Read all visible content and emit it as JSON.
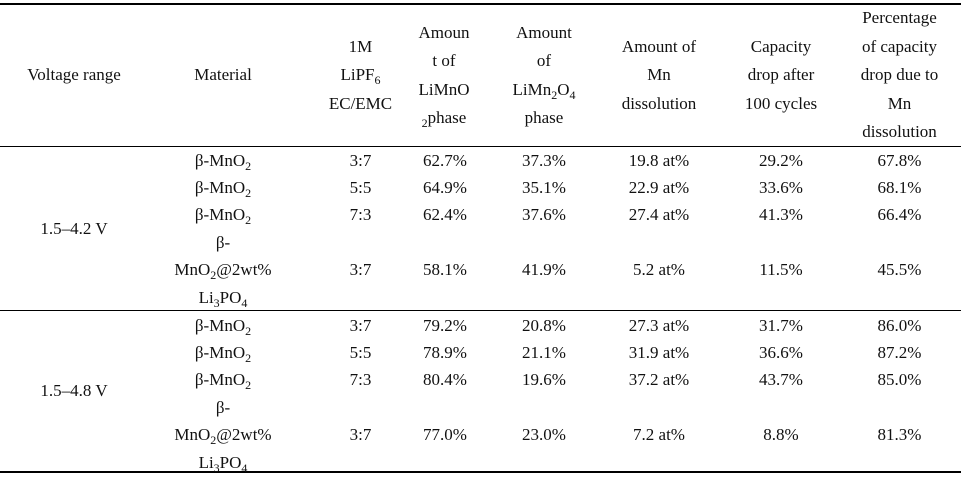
{
  "headers": {
    "voltage": [
      "Voltage range"
    ],
    "material": [
      "Material"
    ],
    "electrolyte": [
      "1M",
      "LiPF|6",
      "EC/EMC"
    ],
    "limno": [
      "Amoun",
      "t of",
      "LiMnO",
      "|2|phase"
    ],
    "limn2o4": [
      "Amount",
      "of",
      "LiMn|2|O|4",
      "phase"
    ],
    "mn_dissolution": [
      "Amount of",
      "Mn",
      "dissolution"
    ],
    "capacity_drop": [
      "Capacity",
      "drop after",
      "100 cycles"
    ],
    "pct_drop": [
      "Percentage",
      "of capacity",
      "drop due to",
      "Mn",
      "dissolution"
    ]
  },
  "groups": [
    {
      "voltage": "1.5–4.2 V",
      "rows": [
        {
          "material": [
            "β-MnO|2"
          ],
          "ratio": "3:7",
          "limno": "62.7%",
          "limn2o4": "37.3%",
          "mn": "19.8 at%",
          "cap": "29.2%",
          "pct": "67.8%"
        },
        {
          "material": [
            "β-MnO|2"
          ],
          "ratio": "5:5",
          "limno": "64.9%",
          "limn2o4": "35.1%",
          "mn": "22.9 at%",
          "cap": "33.6%",
          "pct": "68.1%"
        },
        {
          "material": [
            "β-MnO|2"
          ],
          "ratio": "7:3",
          "limno": "62.4%",
          "limn2o4": "37.6%",
          "mn": "27.4 at%",
          "cap": "41.3%",
          "pct": "66.4%"
        },
        {
          "material": [
            "β-",
            "MnO|2|@2wt%",
            "Li|3|PO|4"
          ],
          "ratio": "3:7",
          "limno": "58.1%",
          "limn2o4": "41.9%",
          "mn": "5.2 at%",
          "cap": "11.5%",
          "pct": "45.5%"
        }
      ]
    },
    {
      "voltage": "1.5–4.8 V",
      "rows": [
        {
          "material": [
            "β-MnO|2"
          ],
          "ratio": "3:7",
          "limno": "79.2%",
          "limn2o4": "20.8%",
          "mn": "27.3 at%",
          "cap": "31.7%",
          "pct": "86.0%"
        },
        {
          "material": [
            "β-MnO|2"
          ],
          "ratio": "5:5",
          "limno": "78.9%",
          "limn2o4": "21.1%",
          "mn": "31.9 at%",
          "cap": "36.6%",
          "pct": "87.2%"
        },
        {
          "material": [
            "β-MnO|2"
          ],
          "ratio": "7:3",
          "limno": "80.4%",
          "limn2o4": "19.6%",
          "mn": "37.2 at%",
          "cap": "43.7%",
          "pct": "85.0%"
        },
        {
          "material": [
            "β-",
            "MnO|2|@2wt%",
            "Li|3|PO|4"
          ],
          "ratio": "3:7",
          "limno": "77.0%",
          "limn2o4": "23.0%",
          "mn": "7.2 at%",
          "cap": "8.8%",
          "pct": "81.3%"
        }
      ]
    }
  ]
}
